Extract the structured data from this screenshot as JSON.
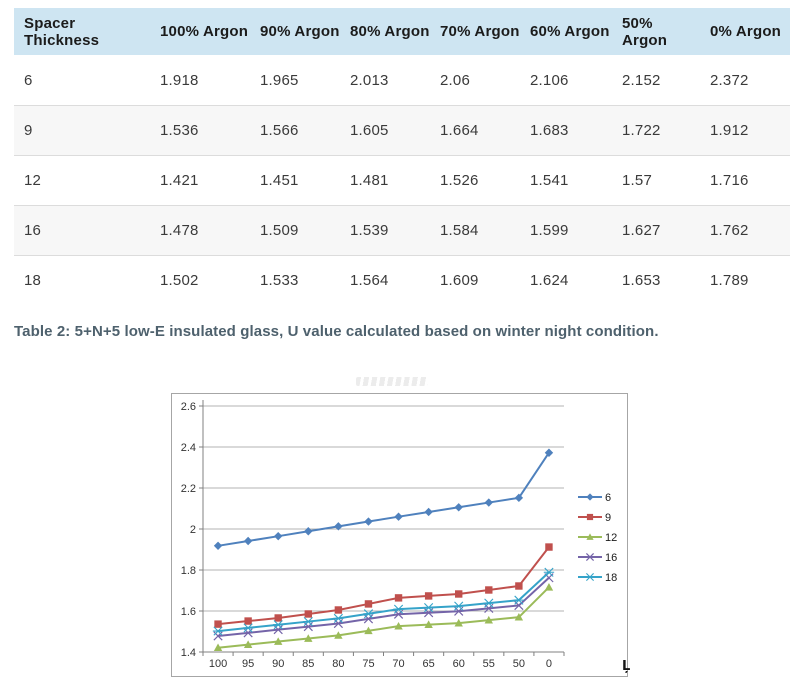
{
  "table": {
    "headers": [
      "Spacer Thickness",
      "100% Argon",
      "90% Argon",
      "80% Argon",
      "70% Argon",
      "60% Argon",
      "50% Argon",
      "0% Argon"
    ],
    "rows": [
      {
        "label": "6",
        "values": [
          "1.918",
          "1.965",
          "2.013",
          "2.06",
          "2.106",
          "2.152",
          "2.372"
        ]
      },
      {
        "label": "9",
        "values": [
          "1.536",
          "1.566",
          "1.605",
          "1.664",
          "1.683",
          "1.722",
          "1.912"
        ]
      },
      {
        "label": "12",
        "values": [
          "1.421",
          "1.451",
          "1.481",
          "1.526",
          "1.541",
          "1.57",
          "1.716"
        ]
      },
      {
        "label": "16",
        "values": [
          "1.478",
          "1.509",
          "1.539",
          "1.584",
          "1.599",
          "1.627",
          "1.762"
        ]
      },
      {
        "label": "18",
        "values": [
          "1.502",
          "1.533",
          "1.564",
          "1.609",
          "1.624",
          "1.653",
          "1.789"
        ]
      }
    ]
  },
  "caption": "Table 2: 5+N+5 low-E insulated glass, U value calculated based on winter night condition.",
  "colors": {
    "header_bg": "#cee5f2",
    "row_alt": "#f7f7f7",
    "row_border": "#dcdcdc",
    "caption_text": "#4e616d",
    "chart_border": "#a6a6a6",
    "axis": "#808080",
    "grid": "#b3b3b3",
    "tick_text": "#333333"
  },
  "artifact_glyph": "Ļ",
  "chart_data": {
    "type": "line",
    "title": "",
    "xlabel": "",
    "ylabel": "",
    "x_categories": [
      "100",
      "95",
      "90",
      "85",
      "80",
      "75",
      "70",
      "65",
      "60",
      "55",
      "50",
      "0"
    ],
    "ylim": [
      1.4,
      2.6
    ],
    "yticks": [
      2.6,
      2.4,
      2.2,
      2,
      1.8,
      1.6,
      1.4
    ],
    "grid": true,
    "legend_position": "right",
    "series": [
      {
        "name": "6",
        "marker": "diamond",
        "color": "#4F81BD",
        "values": [
          1.918,
          1.9415,
          1.965,
          1.989,
          2.013,
          2.0365,
          2.06,
          2.083,
          2.106,
          2.129,
          2.152,
          2.372
        ]
      },
      {
        "name": "9",
        "marker": "square",
        "color": "#C0504D",
        "values": [
          1.536,
          1.551,
          1.566,
          1.5855,
          1.605,
          1.6345,
          1.664,
          1.6735,
          1.683,
          1.7025,
          1.722,
          1.912
        ]
      },
      {
        "name": "12",
        "marker": "triangle",
        "color": "#9BBB59",
        "values": [
          1.421,
          1.436,
          1.451,
          1.466,
          1.481,
          1.5035,
          1.526,
          1.5335,
          1.541,
          1.5555,
          1.57,
          1.716
        ]
      },
      {
        "name": "16",
        "marker": "x",
        "color": "#7464A8",
        "values": [
          1.478,
          1.4935,
          1.509,
          1.524,
          1.539,
          1.5615,
          1.584,
          1.5915,
          1.599,
          1.613,
          1.627,
          1.762
        ]
      },
      {
        "name": "18",
        "marker": "asterisk",
        "color": "#35A3C9",
        "values": [
          1.502,
          1.5175,
          1.533,
          1.5485,
          1.564,
          1.5865,
          1.609,
          1.6165,
          1.624,
          1.6385,
          1.653,
          1.789
        ]
      }
    ]
  }
}
